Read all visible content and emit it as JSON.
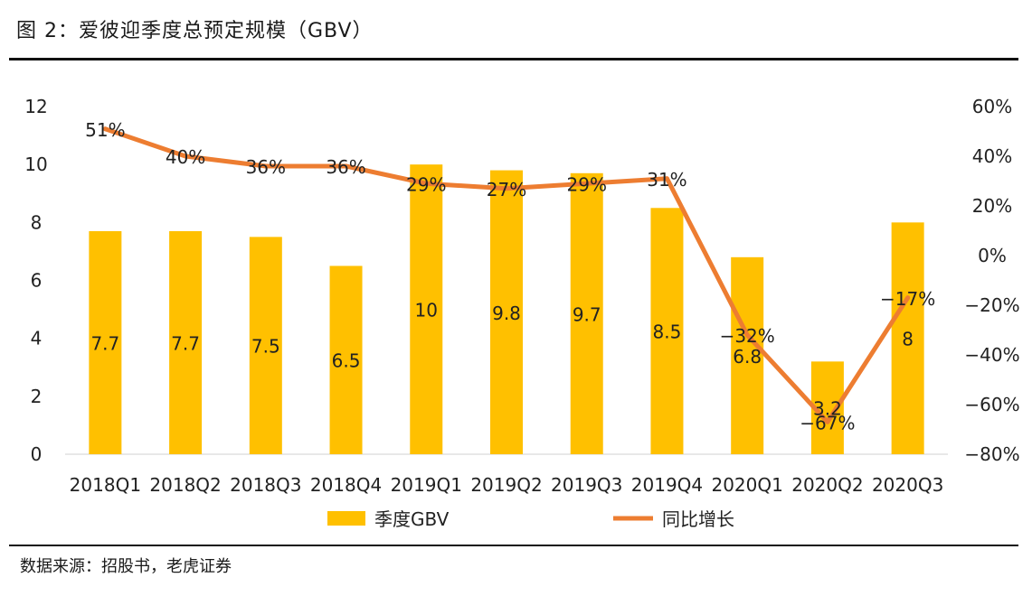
{
  "figure_title": "图 2：爱彼迎季度总预定规模（GBV）",
  "source_note": "数据来源：招股书，老虎证券",
  "chart_data": {
    "type": "bar",
    "categories": [
      "2018Q1",
      "2018Q2",
      "2018Q3",
      "2018Q4",
      "2019Q1",
      "2019Q2",
      "2019Q3",
      "2019Q4",
      "2020Q1",
      "2020Q2",
      "2020Q3"
    ],
    "series": [
      {
        "name": "季度GBV",
        "type": "bar",
        "axis": "left",
        "color": "#FFC000",
        "values": [
          7.7,
          7.7,
          7.5,
          6.5,
          10,
          9.8,
          9.7,
          8.5,
          6.8,
          3.2,
          8
        ],
        "labels": [
          "7.7",
          "7.7",
          "7.5",
          "6.5",
          "10",
          "9.8",
          "9.7",
          "8.5",
          "6.8",
          "3.2",
          "8"
        ]
      },
      {
        "name": "同比增长",
        "type": "line",
        "axis": "right",
        "color": "#ED7D31",
        "values": [
          51,
          40,
          36,
          36,
          29,
          27,
          29,
          31,
          -32,
          -67,
          -17
        ],
        "labels": [
          "51%",
          "40%",
          "36%",
          "36%",
          "29%",
          "27%",
          "29%",
          "31%",
          "−32%",
          "−67%",
          "−17%"
        ]
      }
    ],
    "y_left": {
      "lim": [
        0,
        12
      ],
      "ticks": [
        "0",
        "2",
        "4",
        "6",
        "8",
        "10",
        "12"
      ]
    },
    "y_right": {
      "lim": [
        -80,
        60
      ],
      "ticks": [
        "60%",
        "40%",
        "20%",
        "0%",
        "−20%",
        "−40%",
        "−60%",
        "−80%"
      ]
    },
    "grid": false,
    "legend_position": "bottom"
  }
}
